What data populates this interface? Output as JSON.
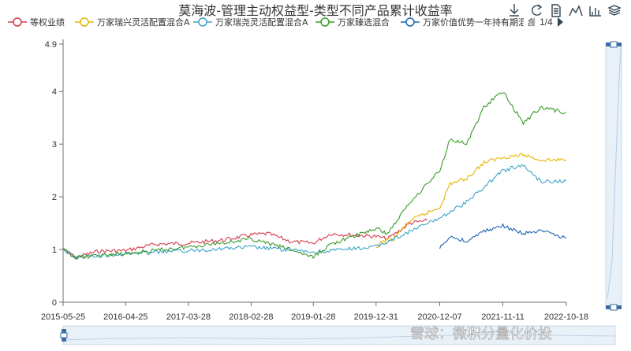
{
  "chart_data": {
    "type": "line",
    "title": "莫海波-管理主动权益型-类型不同产品累计收益率",
    "xlabel": "",
    "ylabel": "",
    "ylim": [
      0,
      4.9
    ],
    "yticks": [
      0,
      1,
      2,
      3,
      4,
      4.9
    ],
    "xlim": [
      "2015-05-25",
      "2022-10-18"
    ],
    "xticks": [
      "2015-05-25",
      "2016-04-25",
      "2017-03-28",
      "2018-02-28",
      "2019-01-28",
      "2019-12-31",
      "2020-12-07",
      "2021-11-11",
      "2022-10-18"
    ],
    "legend_position": "top",
    "legend_page": "1/4",
    "grid": false,
    "series": [
      {
        "name": "等权业绩",
        "color": "#d33d4d",
        "points": [
          [
            "2015-05-25",
            1.0
          ],
          [
            "2015-08-01",
            0.85
          ],
          [
            "2015-12-01",
            0.97
          ],
          [
            "2016-04-25",
            0.98
          ],
          [
            "2016-10-01",
            1.1
          ],
          [
            "2017-03-28",
            1.12
          ],
          [
            "2017-10-01",
            1.18
          ],
          [
            "2018-02-28",
            1.28
          ],
          [
            "2018-06-01",
            1.3
          ],
          [
            "2018-10-01",
            1.15
          ],
          [
            "2019-01-28",
            1.12
          ],
          [
            "2019-05-01",
            1.3
          ],
          [
            "2019-12-31",
            1.25
          ],
          [
            "2020-03-01",
            1.2
          ],
          [
            "2020-07-01",
            1.5
          ],
          [
            "2020-10-01",
            1.55
          ]
        ]
      },
      {
        "name": "万家瑞兴灵活配置混合A",
        "color": "#e6b600",
        "points": [
          [
            "2019-12-31",
            1.0
          ],
          [
            "2020-02-01",
            1.15
          ],
          [
            "2020-04-01",
            1.2
          ],
          [
            "2020-07-01",
            1.55
          ],
          [
            "2020-12-07",
            1.8
          ],
          [
            "2021-02-01",
            2.25
          ],
          [
            "2021-05-01",
            2.35
          ],
          [
            "2021-08-01",
            2.65
          ],
          [
            "2021-11-11",
            2.75
          ],
          [
            "2022-03-01",
            2.8
          ],
          [
            "2022-06-01",
            2.7
          ],
          [
            "2022-10-18",
            2.7
          ]
        ]
      },
      {
        "name": "万家瑞尧灵活配置混合A",
        "color": "#3aa3c8",
        "points": [
          [
            "2015-05-25",
            1.0
          ],
          [
            "2015-08-01",
            0.85
          ],
          [
            "2016-04-25",
            0.92
          ],
          [
            "2017-03-28",
            0.98
          ],
          [
            "2018-02-28",
            1.05
          ],
          [
            "2019-01-28",
            0.95
          ],
          [
            "2019-12-31",
            1.05
          ],
          [
            "2020-12-07",
            1.6
          ],
          [
            "2021-05-01",
            1.9
          ],
          [
            "2021-11-11",
            2.5
          ],
          [
            "2022-03-01",
            2.6
          ],
          [
            "2022-06-01",
            2.3
          ],
          [
            "2022-10-18",
            2.3
          ]
        ]
      },
      {
        "name": "万家臻选混合",
        "color": "#3a9a2a",
        "points": [
          [
            "2015-05-25",
            1.0
          ],
          [
            "2015-08-01",
            0.85
          ],
          [
            "2016-04-25",
            0.92
          ],
          [
            "2017-03-28",
            1.05
          ],
          [
            "2018-02-28",
            1.2
          ],
          [
            "2018-10-01",
            1.0
          ],
          [
            "2019-01-28",
            0.85
          ],
          [
            "2019-05-01",
            1.1
          ],
          [
            "2019-12-31",
            1.4
          ],
          [
            "2020-03-01",
            1.3
          ],
          [
            "2020-07-01",
            1.9
          ],
          [
            "2020-12-07",
            2.5
          ],
          [
            "2021-02-01",
            3.1
          ],
          [
            "2021-05-01",
            3.0
          ],
          [
            "2021-08-01",
            3.7
          ],
          [
            "2021-11-11",
            4.0
          ],
          [
            "2022-03-01",
            3.4
          ],
          [
            "2022-06-01",
            3.7
          ],
          [
            "2022-10-18",
            3.6
          ]
        ]
      },
      {
        "name": "万家价值优势一年持有期混合",
        "color": "#1f64b4",
        "points": [
          [
            "2020-12-07",
            1.02
          ],
          [
            "2021-02-01",
            1.25
          ],
          [
            "2021-05-01",
            1.15
          ],
          [
            "2021-08-01",
            1.35
          ],
          [
            "2021-11-11",
            1.45
          ],
          [
            "2022-03-01",
            1.3
          ],
          [
            "2022-06-01",
            1.35
          ],
          [
            "2022-10-18",
            1.22
          ]
        ]
      }
    ]
  },
  "toolbox": [
    {
      "name": "download-icon"
    },
    {
      "name": "refresh-icon"
    },
    {
      "name": "data-view-icon"
    },
    {
      "name": "line-chart-icon"
    },
    {
      "name": "bar-chart-icon"
    },
    {
      "name": "stack-icon"
    }
  ],
  "watermark": "雪球：微积分量化价投"
}
